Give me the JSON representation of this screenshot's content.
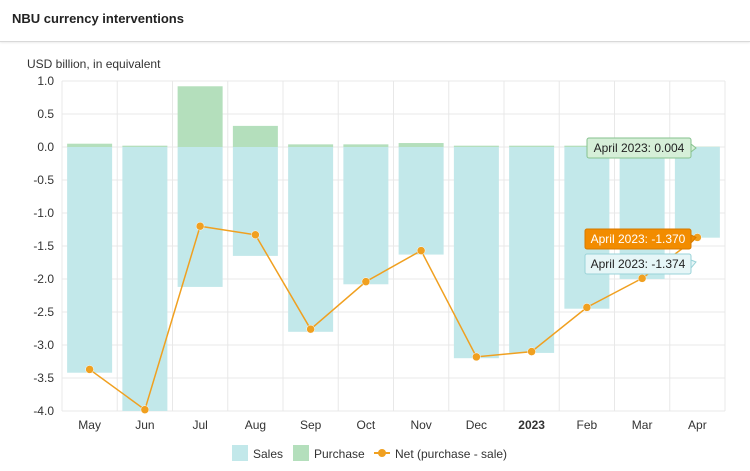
{
  "header": {
    "title": "NBU currency interventions"
  },
  "colors": {
    "sales": "#c2e8ea",
    "purchase": "#b4dfbc",
    "net": "#f0a020",
    "grid": "#e8e8e8",
    "tooltip_purchase_fill": "#d6efd8",
    "tooltip_purchase_border": "#86c28e",
    "tooltip_net_fill": "#f28c00",
    "tooltip_sales_fill": "#e6f6f7",
    "tooltip_sales_border": "#9ad3d8"
  },
  "chart_data": {
    "type": "bar",
    "ylabel": "USD billion, in equivalent",
    "ylim": [
      -4.0,
      1.0
    ],
    "yticks": [
      "1.0",
      "0.5",
      "0.0",
      "-0.5",
      "-1.0",
      "-1.5",
      "-2.0",
      "-2.5",
      "-3.0",
      "-3.5",
      "-4.0"
    ],
    "categories": [
      "May",
      "Jun",
      "Jul",
      "Aug",
      "Sep",
      "Oct",
      "Nov",
      "Dec",
      "2023",
      "Feb",
      "Mar",
      "Apr"
    ],
    "grid": true,
    "legend_position": "bottom-center",
    "series": [
      {
        "name": "Sales",
        "kind": "bar",
        "values": [
          -3.42,
          -4.0,
          -2.12,
          -1.65,
          -2.8,
          -2.08,
          -1.63,
          -3.2,
          -3.12,
          -2.45,
          -2.0,
          -1.374
        ]
      },
      {
        "name": "Purchase",
        "kind": "bar",
        "values": [
          0.05,
          0.02,
          0.92,
          0.32,
          0.04,
          0.04,
          0.06,
          0.02,
          0.02,
          0.02,
          0.01,
          0.004
        ]
      },
      {
        "name": "Net (purchase - sale)",
        "kind": "line",
        "values": [
          -3.37,
          -3.98,
          -1.2,
          -1.33,
          -2.76,
          -2.04,
          -1.57,
          -3.18,
          -3.1,
          -2.43,
          -1.99,
          -1.37
        ]
      }
    ],
    "tooltips": [
      {
        "series": "Purchase",
        "text": "April 2023: 0.004"
      },
      {
        "series": "Net (purchase - sale)",
        "text": "April 2023: -1.370"
      },
      {
        "series": "Sales",
        "text": "April 2023: -1.374"
      }
    ]
  }
}
